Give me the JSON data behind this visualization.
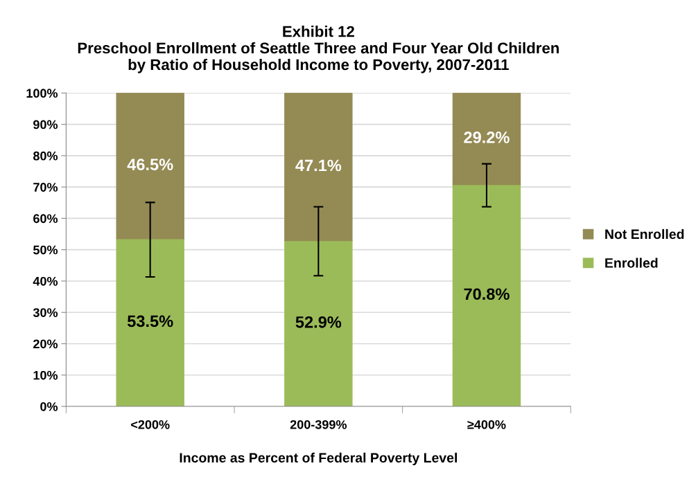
{
  "chart_data": {
    "type": "bar",
    "stacked": true,
    "title": "Exhibit 12\nPreschool Enrollment of Seattle Three and Four Year Old Children\nby Ratio of Household Income to Poverty, 2007-2011",
    "xlabel": "Income as Percent of Federal Poverty Level",
    "categories": [
      "<200%",
      "200-399%",
      "≥400%"
    ],
    "series": [
      {
        "name": "Enrolled",
        "color": "#9bbb59",
        "values": [
          53.5,
          52.9,
          70.8
        ],
        "errors": [
          [
            41.3,
            65.1
          ],
          [
            41.7,
            63.7
          ],
          [
            63.7,
            77.4
          ]
        ],
        "value_labels": [
          "53.5%",
          "52.9%",
          "70.8%"
        ]
      },
      {
        "name": "Not Enrolled",
        "color": "#948a54",
        "values": [
          46.5,
          47.1,
          29.2
        ],
        "value_labels": [
          "46.5%",
          "47.1%",
          "29.2%"
        ]
      }
    ],
    "ylim": [
      0,
      100
    ],
    "yticks": [
      {
        "value": 0,
        "label": "0%"
      },
      {
        "value": 10,
        "label": "10%"
      },
      {
        "value": 20,
        "label": "20%"
      },
      {
        "value": 30,
        "label": "30%"
      },
      {
        "value": 40,
        "label": "40%"
      },
      {
        "value": 50,
        "label": "50%"
      },
      {
        "value": 60,
        "label": "60%"
      },
      {
        "value": 70,
        "label": "70%"
      },
      {
        "value": 80,
        "label": "80%"
      },
      {
        "value": 90,
        "label": "90%"
      },
      {
        "value": 100,
        "label": "100%"
      }
    ],
    "grid": "y",
    "legend": "right"
  }
}
